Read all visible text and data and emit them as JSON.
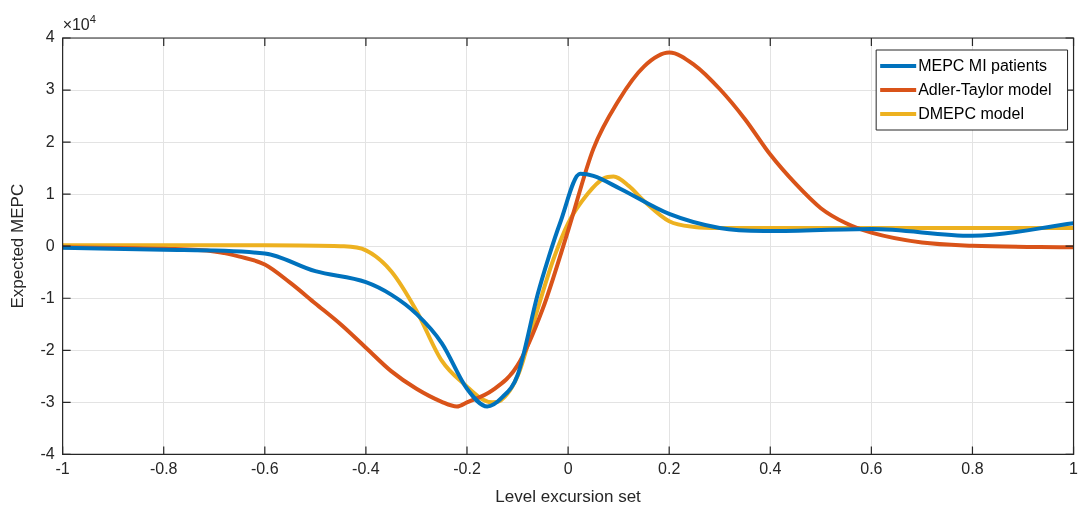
{
  "chart_data": {
    "type": "line",
    "xlabel": "Level excursion set",
    "ylabel": "Expected MEPC",
    "annotations": [
      "×10$^{4}$"
    ],
    "xlim": [
      -1,
      1
    ],
    "xticks": [
      -1,
      -0.8,
      -0.6,
      -0.4,
      -0.2,
      0,
      0.2,
      0.4,
      0.6,
      0.8,
      1
    ],
    "ylim": [
      -4,
      4
    ],
    "yticks": [
      -4,
      -3,
      -2,
      -1,
      0,
      1,
      2,
      3,
      4
    ],
    "grid": true,
    "legend": "top right",
    "line_style": "solid",
    "marker": "none",
    "series": [
      {
        "name": "MEPC MI patients",
        "color": "#0072bd",
        "x": [
          -1,
          -0.8,
          -0.6,
          -0.5,
          -0.4,
          -0.35,
          -0.3,
          -0.25,
          -0.2,
          -0.16,
          -0.13,
          -0.1,
          -0.06,
          -0.038,
          -0.016,
          0.024,
          0.05,
          0.104,
          0.2,
          0.3,
          0.4,
          0.6,
          0.8,
          1
        ],
        "values": [
          -0.03,
          -0.07,
          -0.14,
          -0.48,
          -0.69,
          -0.93,
          -1.3,
          -1.86,
          -2.74,
          -3.08,
          -2.9,
          -2.48,
          -0.92,
          -0.2,
          0.44,
          1.39,
          1.35,
          1.1,
          0.62,
          0.35,
          0.29,
          0.33,
          0.2,
          0.44
        ]
      },
      {
        "name": "Adler-Taylor model",
        "color": "#d95319",
        "x": [
          -1,
          -0.8,
          -0.7,
          -0.65,
          -0.6,
          -0.55,
          -0.5,
          -0.45,
          -0.4,
          -0.35,
          -0.3,
          -0.25,
          -0.22,
          -0.2,
          -0.15,
          -0.1,
          -0.05,
          0,
          0.05,
          0.1,
          0.15,
          0.2,
          0.25,
          0.3,
          0.35,
          0.4,
          0.45,
          0.5,
          0.55,
          0.6,
          0.7,
          0.8,
          1
        ],
        "values": [
          -0.02,
          -0.05,
          -0.1,
          -0.2,
          -0.35,
          -0.7,
          -1.1,
          -1.5,
          -1.95,
          -2.4,
          -2.74,
          -2.99,
          -3.08,
          -3.0,
          -2.77,
          -2.29,
          -1.2,
          0.3,
          1.87,
          2.8,
          3.45,
          3.72,
          3.48,
          3.02,
          2.44,
          1.76,
          1.2,
          0.73,
          0.44,
          0.26,
          0.07,
          0.01,
          -0.02
        ]
      },
      {
        "name": "DMEPC model",
        "color": "#edb120",
        "x": [
          -1,
          -0.6,
          -0.45,
          -0.4,
          -0.35,
          -0.3,
          -0.25,
          -0.2,
          -0.17,
          -0.15,
          -0.133,
          -0.098,
          -0.06,
          -0.03,
          0,
          0.04,
          0.07,
          0.09,
          0.12,
          0.15,
          0.2,
          0.25,
          0.3,
          0.6,
          1
        ],
        "values": [
          0.02,
          0.02,
          0,
          -0.08,
          -0.48,
          -1.24,
          -2.2,
          -2.7,
          -2.94,
          -3.0,
          -2.96,
          -2.45,
          -1.2,
          -0.28,
          0.44,
          1.02,
          1.3,
          1.34,
          1.16,
          0.87,
          0.48,
          0.37,
          0.35,
          0.35,
          0.35
        ]
      }
    ]
  }
}
